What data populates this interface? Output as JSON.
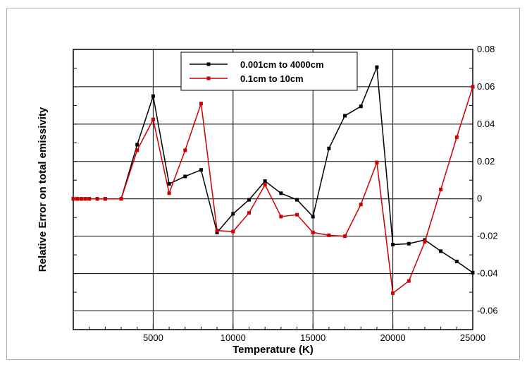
{
  "chart_data": {
    "type": "line",
    "title": "",
    "xlabel": "Temperature (K)",
    "ylabel": "Relative Error on total emissivity",
    "xlim": [
      0,
      25000
    ],
    "ylim": [
      -0.07,
      0.08
    ],
    "x_ticks": [
      "5000",
      "10000",
      "15000",
      "20000",
      "25000"
    ],
    "x_tick_values": [
      5000,
      10000,
      15000,
      20000,
      25000
    ],
    "y_ticks": [
      "0.08",
      "0.06",
      "0.04",
      "0.02",
      "0",
      "-0.02",
      "-0.04",
      "-0.06"
    ],
    "y_tick_values": [
      0.08,
      0.06,
      0.04,
      0.02,
      0,
      -0.02,
      -0.04,
      -0.06
    ],
    "y_axis_side": "right",
    "grid": true,
    "legend_position": "top-center",
    "series": [
      {
        "name": "0.001cm to 4000cm",
        "color": "#000000",
        "x": [
          0,
          250,
          500,
          750,
          1000,
          1500,
          2000,
          3000,
          4000,
          5000,
          6000,
          7000,
          8000,
          9000,
          10000,
          11000,
          12000,
          13000,
          14000,
          15000,
          16000,
          17000,
          18000,
          19000,
          20000,
          21000,
          22000,
          23000,
          24000,
          25000
        ],
        "y": [
          0,
          0,
          0,
          0,
          0,
          0,
          0,
          0,
          0.029,
          0.055,
          0.008,
          0.012,
          0.0155,
          -0.018,
          -0.008,
          -0.0005,
          0.0095,
          0.003,
          -0.0005,
          -0.0095,
          0.027,
          0.0445,
          0.0495,
          0.0705,
          -0.0245,
          -0.024,
          -0.022,
          -0.028,
          -0.0335,
          -0.0395
        ]
      },
      {
        "name": "0.1cm to 10cm",
        "color": "#cc0000",
        "x": [
          0,
          250,
          500,
          750,
          1000,
          1500,
          2000,
          3000,
          4000,
          5000,
          6000,
          7000,
          8000,
          9000,
          10000,
          11000,
          12000,
          13000,
          14000,
          15000,
          16000,
          17000,
          18000,
          19000,
          20000,
          21000,
          22000,
          23000,
          24000,
          25000
        ],
        "y": [
          0,
          0,
          0,
          0,
          0,
          0,
          0,
          0,
          0.026,
          0.0425,
          0.003,
          0.026,
          0.051,
          -0.017,
          -0.0175,
          -0.0075,
          0.0075,
          -0.0095,
          -0.0085,
          -0.018,
          -0.0195,
          -0.02,
          -0.003,
          0.0195,
          -0.0505,
          -0.044,
          -0.023,
          0.005,
          0.033,
          0.06
        ]
      }
    ]
  }
}
